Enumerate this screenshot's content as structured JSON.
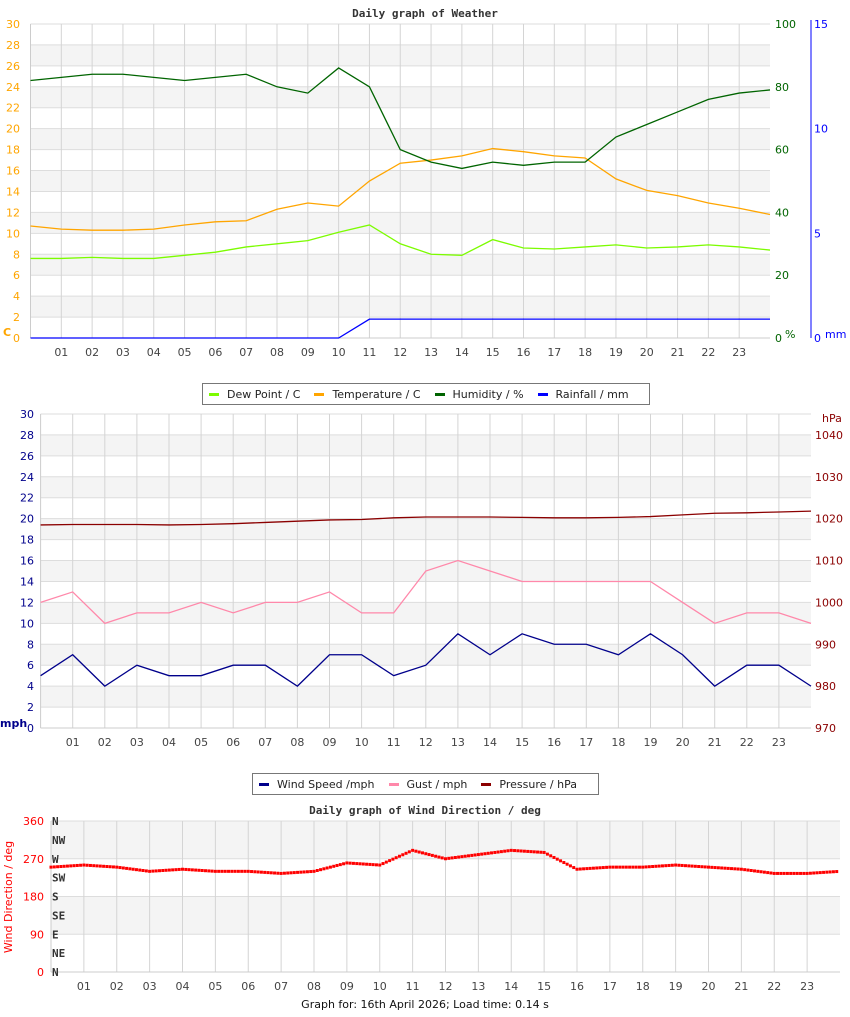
{
  "chart_data": [
    {
      "type": "line",
      "title": "Daily graph of Weather",
      "x_ticks": [
        "01",
        "02",
        "03",
        "04",
        "05",
        "06",
        "07",
        "08",
        "09",
        "10",
        "11",
        "12",
        "13",
        "14",
        "15",
        "16",
        "17",
        "18",
        "19",
        "20",
        "21",
        "22",
        "23"
      ],
      "x_hours": [
        0,
        1,
        2,
        3,
        4,
        5,
        6,
        7,
        8,
        9,
        10,
        11,
        12,
        13,
        14,
        15,
        16,
        17,
        18,
        19,
        20,
        21,
        22,
        23,
        24
      ],
      "axes": {
        "left": {
          "unit": "C",
          "range": [
            0,
            30
          ],
          "ticks": [
            0,
            2,
            4,
            6,
            8,
            10,
            12,
            14,
            16,
            18,
            20,
            22,
            24,
            26,
            28,
            30
          ],
          "color": "#ffa500"
        },
        "right1": {
          "unit": "%",
          "range": [
            0,
            100
          ],
          "ticks": [
            0,
            20,
            40,
            60,
            80,
            100
          ],
          "color": "#006400"
        },
        "right2": {
          "unit": "mm",
          "range": [
            0,
            15
          ],
          "ticks": [
            0,
            5,
            10,
            15
          ],
          "color": "#0000ff"
        }
      },
      "grid": true,
      "series": [
        {
          "name": "Dew Point / C",
          "axis": "left",
          "color": "#7cfc00",
          "values": [
            7.6,
            7.6,
            7.7,
            7.6,
            7.6,
            7.9,
            8.2,
            8.7,
            9.0,
            9.3,
            10.1,
            10.8,
            9.0,
            8.0,
            7.9,
            9.4,
            8.6,
            8.5,
            8.7,
            8.9,
            8.6,
            8.7,
            8.9,
            8.7,
            8.4
          ]
        },
        {
          "name": "Temperature / C",
          "axis": "left",
          "color": "#ffa500",
          "values": [
            10.7,
            10.4,
            10.3,
            10.3,
            10.4,
            10.8,
            11.1,
            11.2,
            12.3,
            12.9,
            12.6,
            15.0,
            16.7,
            17.0,
            17.4,
            18.1,
            17.8,
            17.4,
            17.2,
            15.2,
            14.1,
            13.6,
            12.9,
            12.4,
            11.8
          ]
        },
        {
          "name": "Humidity / %",
          "axis": "right1",
          "color": "#006400",
          "values": [
            82,
            83,
            84,
            84,
            83,
            82,
            83,
            84,
            80,
            78,
            86,
            80,
            60,
            56,
            54,
            56,
            55,
            56,
            56,
            64,
            68,
            72,
            76,
            78,
            79
          ]
        },
        {
          "name": "Rainfall / mm",
          "axis": "right2",
          "color": "#0000ff",
          "values": [
            0,
            0,
            0,
            0,
            0,
            0,
            0,
            0,
            0,
            0,
            0,
            0.9,
            0.9,
            0.9,
            0.9,
            0.9,
            0.9,
            0.9,
            0.9,
            0.9,
            0.9,
            0.9,
            0.9,
            0.9,
            0.9
          ]
        }
      ]
    },
    {
      "type": "line",
      "title": "",
      "x_ticks": [
        "01",
        "02",
        "03",
        "04",
        "05",
        "06",
        "07",
        "08",
        "09",
        "10",
        "11",
        "12",
        "13",
        "14",
        "15",
        "16",
        "17",
        "18",
        "19",
        "20",
        "21",
        "22",
        "23"
      ],
      "x_hours": [
        0,
        1,
        2,
        3,
        4,
        5,
        6,
        7,
        8,
        9,
        10,
        11,
        12,
        13,
        14,
        15,
        16,
        17,
        18,
        19,
        20,
        21,
        22,
        23,
        24
      ],
      "axes": {
        "left": {
          "unit": "mph",
          "range": [
            0,
            30
          ],
          "ticks": [
            0,
            2,
            4,
            6,
            8,
            10,
            12,
            14,
            16,
            18,
            20,
            22,
            24,
            26,
            28,
            30
          ],
          "color": "#00008b"
        },
        "right": {
          "unit": "hPa",
          "range": [
            970,
            1045
          ],
          "ticks": [
            970,
            980,
            990,
            1000,
            1010,
            1020,
            1030,
            1040
          ],
          "color": "#8b0000"
        }
      },
      "grid": true,
      "series": [
        {
          "name": "Wind Speed /mph",
          "axis": "left",
          "color": "#00008b",
          "values": [
            5,
            7,
            4,
            6,
            5,
            5,
            6,
            6,
            4,
            7,
            7,
            5,
            6,
            9,
            7,
            9,
            8,
            8,
            7,
            9,
            7,
            4,
            6,
            6,
            4
          ]
        },
        {
          "name": "Gust / mph",
          "axis": "left",
          "color": "#ff88aa",
          "values": [
            12,
            13,
            10,
            11,
            11,
            12,
            11,
            12,
            12,
            13,
            11,
            11,
            15,
            16,
            15,
            14,
            14,
            14,
            14,
            14,
            12,
            10,
            11,
            11,
            10
          ]
        },
        {
          "name": "Pressure / hPa",
          "axis": "right",
          "color": "#8b0000",
          "values": [
            1018.5,
            1018.6,
            1018.6,
            1018.6,
            1018.5,
            1018.6,
            1018.8,
            1019.1,
            1019.4,
            1019.7,
            1019.8,
            1020.2,
            1020.4,
            1020.4,
            1020.4,
            1020.3,
            1020.2,
            1020.2,
            1020.3,
            1020.5,
            1020.9,
            1021.3,
            1021.4,
            1021.6,
            1021.8
          ]
        }
      ]
    },
    {
      "type": "scatter",
      "title": "Daily graph of Wind Direction / deg",
      "ylabel": "Wind Direction / deg",
      "x_ticks": [
        "01",
        "02",
        "03",
        "04",
        "05",
        "06",
        "07",
        "08",
        "09",
        "10",
        "11",
        "12",
        "13",
        "14",
        "15",
        "16",
        "17",
        "18",
        "19",
        "20",
        "21",
        "22",
        "23"
      ],
      "x_hours": [
        0,
        1,
        2,
        3,
        4,
        5,
        6,
        7,
        8,
        9,
        10,
        11,
        12,
        13,
        14,
        15,
        16,
        17,
        18,
        19,
        20,
        21,
        22,
        23,
        24
      ],
      "axes": {
        "left": {
          "range": [
            0,
            360
          ],
          "ticks": [
            0,
            90,
            180,
            270,
            360
          ],
          "color": "#ff0000"
        },
        "compass": [
          "N",
          "NE",
          "E",
          "SE",
          "S",
          "SW",
          "W",
          "NW",
          "N"
        ]
      },
      "grid": true,
      "series": [
        {
          "name": "Wind Direction / deg",
          "color": "#ff0000",
          "values": [
            250,
            255,
            250,
            240,
            245,
            240,
            240,
            235,
            240,
            260,
            255,
            290,
            270,
            280,
            290,
            285,
            245,
            250,
            250,
            255,
            250,
            245,
            235,
            235,
            240
          ]
        }
      ]
    }
  ],
  "legend1": [
    "Dew Point / C",
    "Temperature / C",
    "Humidity / %",
    "Rainfall / mm"
  ],
  "legend2": [
    "Wind Speed /mph",
    "Gust / mph",
    "Pressure / hPa"
  ],
  "footer": "Graph for: 16th April 2026; Load time: 0.14 s"
}
